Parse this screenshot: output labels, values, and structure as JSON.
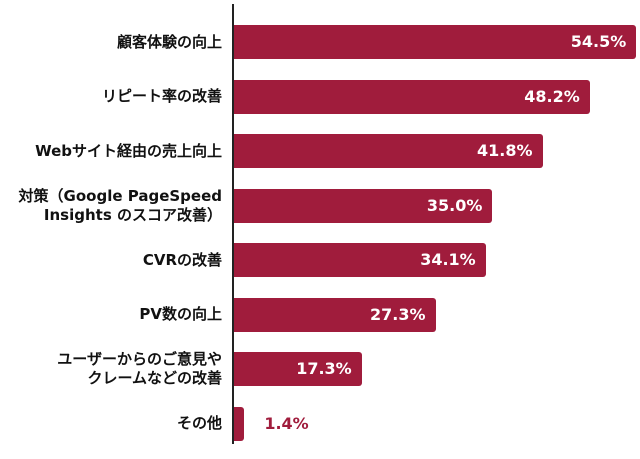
{
  "chart_data": {
    "type": "bar",
    "orientation": "horizontal",
    "categories": [
      "顧客体験の向上",
      "リピート率の改善",
      "Webサイト経由の売上向上",
      "対策（Google PageSpeed\nInsights のスコア改善）",
      "CVRの改善",
      "PV数の向上",
      "ユーザーからのご意見や\nクレームなどの改善",
      "その他"
    ],
    "values": [
      54.5,
      48.2,
      41.8,
      35.0,
      34.1,
      27.3,
      17.3,
      1.4
    ],
    "value_labels": [
      "54.5%",
      "48.2%",
      "41.8%",
      "35.0%",
      "34.1%",
      "27.3%",
      "17.3%",
      "1.4%"
    ],
    "unit": "%",
    "xlim": [
      0,
      55
    ],
    "grid": false,
    "legend": "none",
    "colors": {
      "bar": "#a01c3c",
      "label_outside": "#a01c3c",
      "axis": "#222222"
    }
  }
}
